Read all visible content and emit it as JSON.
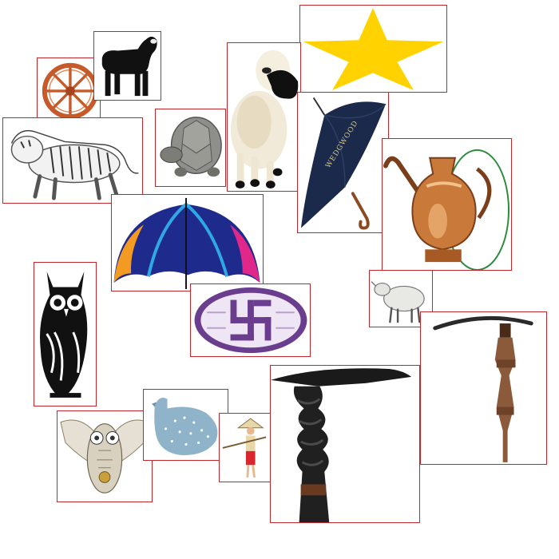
{
  "collage": {
    "tiles": [
      {
        "icon": "wagon-wheel-icon"
      },
      {
        "icon": "black-sheep-icon"
      },
      {
        "icon": "gold-star-icon"
      },
      {
        "icon": "plush-sheep-icon"
      },
      {
        "icon": "tiger-sketch-icon"
      },
      {
        "icon": "tortoise-icon"
      },
      {
        "icon": "closed-umbrella-icon"
      },
      {
        "icon": "copper-kettle-icon"
      },
      {
        "icon": "open-umbrella-icon"
      },
      {
        "icon": "swastika-emblem-icon"
      },
      {
        "icon": "lamb-sketch-icon"
      },
      {
        "icon": "walking-cane-icon"
      },
      {
        "icon": "tribal-owl-icon"
      },
      {
        "icon": "ornate-owl-icon"
      },
      {
        "icon": "hen-icon"
      },
      {
        "icon": "farmer-icon"
      },
      {
        "icon": "carved-stick-icon"
      }
    ],
    "umbrella_text": "WEDGWOOD"
  },
  "colors": {
    "frame_border": "#c0282d",
    "star": "#ffd200",
    "umbrella_navy": "#1b2a4a",
    "wheel": "#c65a2a",
    "hen": "#8fb4c9"
  }
}
